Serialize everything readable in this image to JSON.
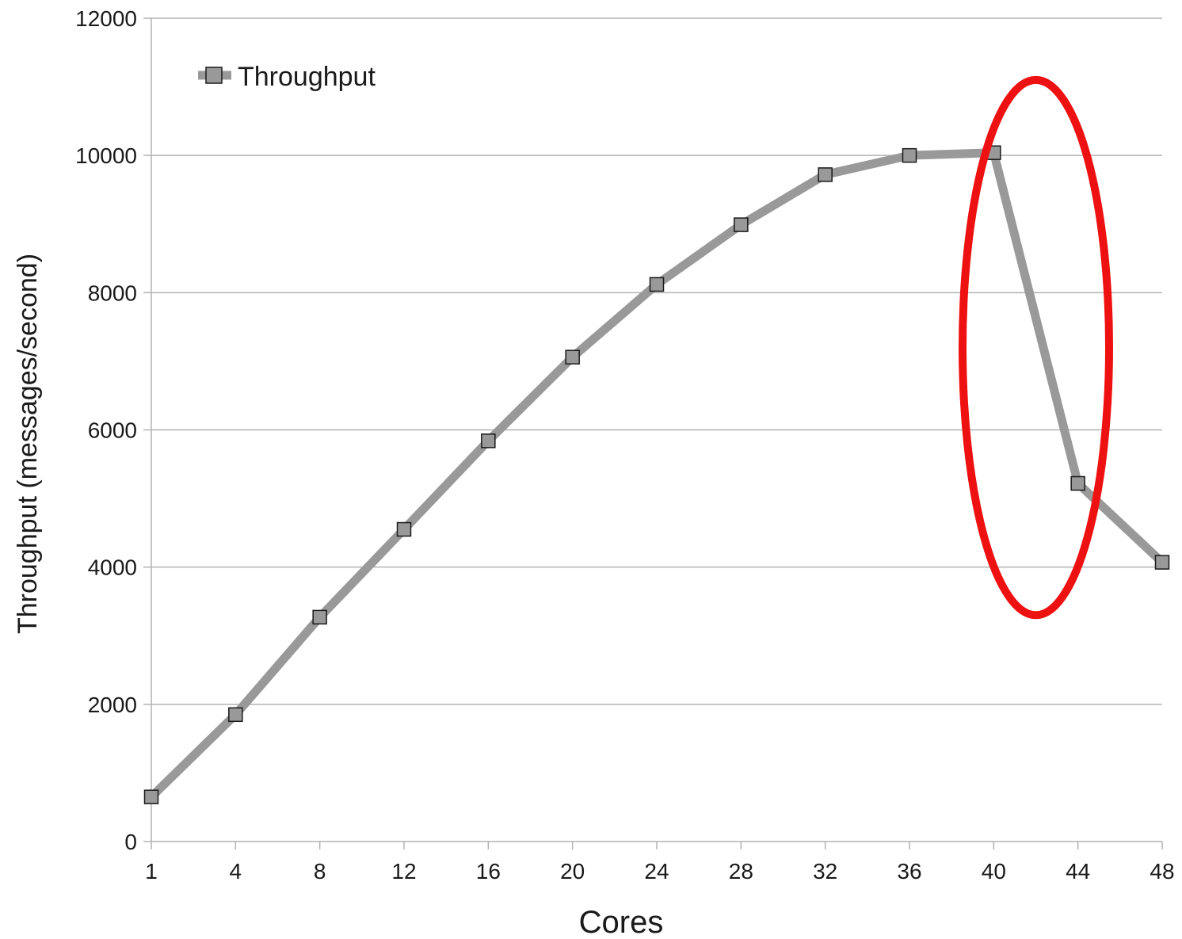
{
  "chart_data": {
    "type": "line",
    "xlabel": "Cores",
    "ylabel": "Throughput (messages/second)",
    "categories": [
      "1",
      "4",
      "8",
      "12",
      "16",
      "20",
      "24",
      "28",
      "32",
      "36",
      "40",
      "44",
      "48"
    ],
    "series": [
      {
        "name": "Throughput",
        "values": [
          650,
          1850,
          3270,
          4550,
          5840,
          7060,
          8120,
          8990,
          9720,
          10000,
          10040,
          5220,
          4070
        ]
      }
    ],
    "ylim": [
      0,
      12000
    ],
    "yticks": [
      "0",
      "2000",
      "4000",
      "6000",
      "8000",
      "10000",
      "12000"
    ],
    "grid": "horizontal",
    "legend_position": "top-left",
    "highlight": {
      "shape": "ellipse",
      "around_categories": [
        "40",
        "44"
      ],
      "y_range": [
        3300,
        11100
      ]
    },
    "colors": {
      "line": "#999999",
      "marker_fill": "#999999",
      "marker_stroke": "#1a1a1a",
      "grid": "#b3b3b3",
      "axis": "#b3b3b3",
      "highlight": "#ee1111"
    }
  }
}
